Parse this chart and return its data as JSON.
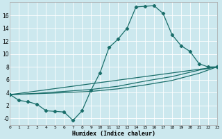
{
  "xlabel": "Humidex (Indice chaleur)",
  "bg_color": "#cce8ee",
  "grid_color": "#ffffff",
  "line_color": "#1a6e6a",
  "line1_x": [
    0,
    1,
    2,
    3,
    4,
    5,
    6,
    7,
    8,
    9,
    10,
    11,
    12,
    13,
    14,
    15,
    16,
    17,
    18,
    19,
    20,
    21,
    22,
    23
  ],
  "line1_y": [
    3.7,
    2.8,
    2.6,
    2.2,
    1.2,
    1.1,
    1.0,
    -0.3,
    1.2,
    4.4,
    7.1,
    11.0,
    12.3,
    14.0,
    17.3,
    17.4,
    17.5,
    16.3,
    13.0,
    11.3,
    10.4,
    8.5,
    8.0,
    8.0
  ],
  "line2_x": [
    0,
    23
  ],
  "line2_y": [
    3.7,
    8.0
  ],
  "line3_x": [
    0,
    3,
    6,
    9,
    12,
    15,
    18,
    21,
    23
  ],
  "line3_y": [
    3.7,
    3.9,
    4.2,
    4.5,
    5.0,
    5.8,
    6.5,
    7.5,
    8.0
  ],
  "line4_x": [
    0,
    3,
    6,
    9,
    12,
    15,
    18,
    21,
    23
  ],
  "line4_y": [
    3.7,
    3.85,
    4.0,
    4.2,
    4.6,
    5.2,
    5.9,
    7.0,
    8.0
  ],
  "xlim": [
    0,
    23
  ],
  "ylim": [
    -1.0,
    18.0
  ],
  "yticks": [
    0,
    2,
    4,
    6,
    8,
    10,
    12,
    14,
    16
  ],
  "ytick_labels": [
    "-0",
    "2",
    "4",
    "6",
    "8",
    "10",
    "12",
    "14",
    "16"
  ],
  "xtick_labels": [
    "0",
    "1",
    "2",
    "3",
    "4",
    "5",
    "6",
    "7",
    "8",
    "9",
    "10",
    "11",
    "12",
    "13",
    "14",
    "15",
    "16",
    "17",
    "18",
    "19",
    "20",
    "21",
    "22",
    "23"
  ]
}
